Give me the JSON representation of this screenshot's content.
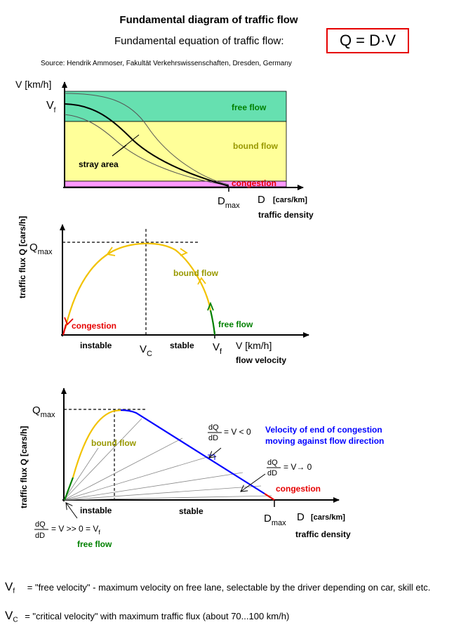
{
  "title": "Fundamental diagram of traffic flow",
  "equation": {
    "label": "Fundamental equation of traffic flow:",
    "formula": "Q = D·V"
  },
  "source": "Source: Hendrik Ammoser, Fakultät Verkehrswissenschaften, Dresden, Germany",
  "colors": {
    "free_flow_band": "#66e0b0",
    "bound_flow_band": "#ffff99",
    "congestion_band": "#ff99ff",
    "free_flow_text": "#008000",
    "bound_flow_text": "#999900",
    "congestion_text": "#e60000",
    "curve_yellow": "#f2c200",
    "curve_blue": "#0000ff",
    "equation_border": "#e60000"
  },
  "diagram1": {
    "y_axis_label": "V [km/h]",
    "vf_symbol": "V",
    "vf_sub": "f",
    "free_flow": "free flow",
    "bound_flow": "bound flow",
    "congestion": "congestion",
    "stray_area": "stray area",
    "dmax_symbol": "D",
    "dmax_sub": "max",
    "x_axis_symbol": "D",
    "x_axis_unit": "[cars/km]",
    "x_axis_label": "traffic density"
  },
  "diagram2": {
    "y_axis_label": "traffic flux Q [cars/h]",
    "qmax_symbol": "Q",
    "qmax_sub": "max",
    "bound_flow": "bound flow",
    "free_flow": "free flow",
    "congestion": "congestion",
    "instable": "instable",
    "stable": "stable",
    "vc_symbol": "V",
    "vc_sub": "C",
    "vf_symbol": "V",
    "vf_sub": "f",
    "x_axis_label": "V [km/h]",
    "x_axis_caption": "flow velocity"
  },
  "diagram3": {
    "y_axis_label": "traffic flux Q [cars/h]",
    "qmax_symbol": "Q",
    "qmax_sub": "max",
    "bound_flow": "bound flow",
    "velocity_note_line1": "Velocity of end of congestion",
    "velocity_note_line2": "moving against flow direction",
    "frac_num": "dQ",
    "frac_den": "dD",
    "eq1_text": "= V < 0",
    "eq2_text": "= V→ 0",
    "eq3_text": "= V >> 0 = V",
    "eq3_sub": "f",
    "congestion": "congestion",
    "instable": "instable",
    "stable": "stable",
    "free_flow": "free flow",
    "dmax_symbol": "D",
    "dmax_sub": "max",
    "x_axis_symbol": "D",
    "x_axis_unit": "[cars/km]",
    "x_axis_label": "traffic density"
  },
  "legend": [
    {
      "symbol": "V",
      "sub": "f",
      "text": "= \"free velocity\" - maximum velocity on free lane, selectable by the driver depending on car, skill etc."
    },
    {
      "symbol": "V",
      "sub": "C",
      "text": "=  \"critical velocity\"  with maximum traffic flux (about 70...100 km/h)"
    }
  ]
}
